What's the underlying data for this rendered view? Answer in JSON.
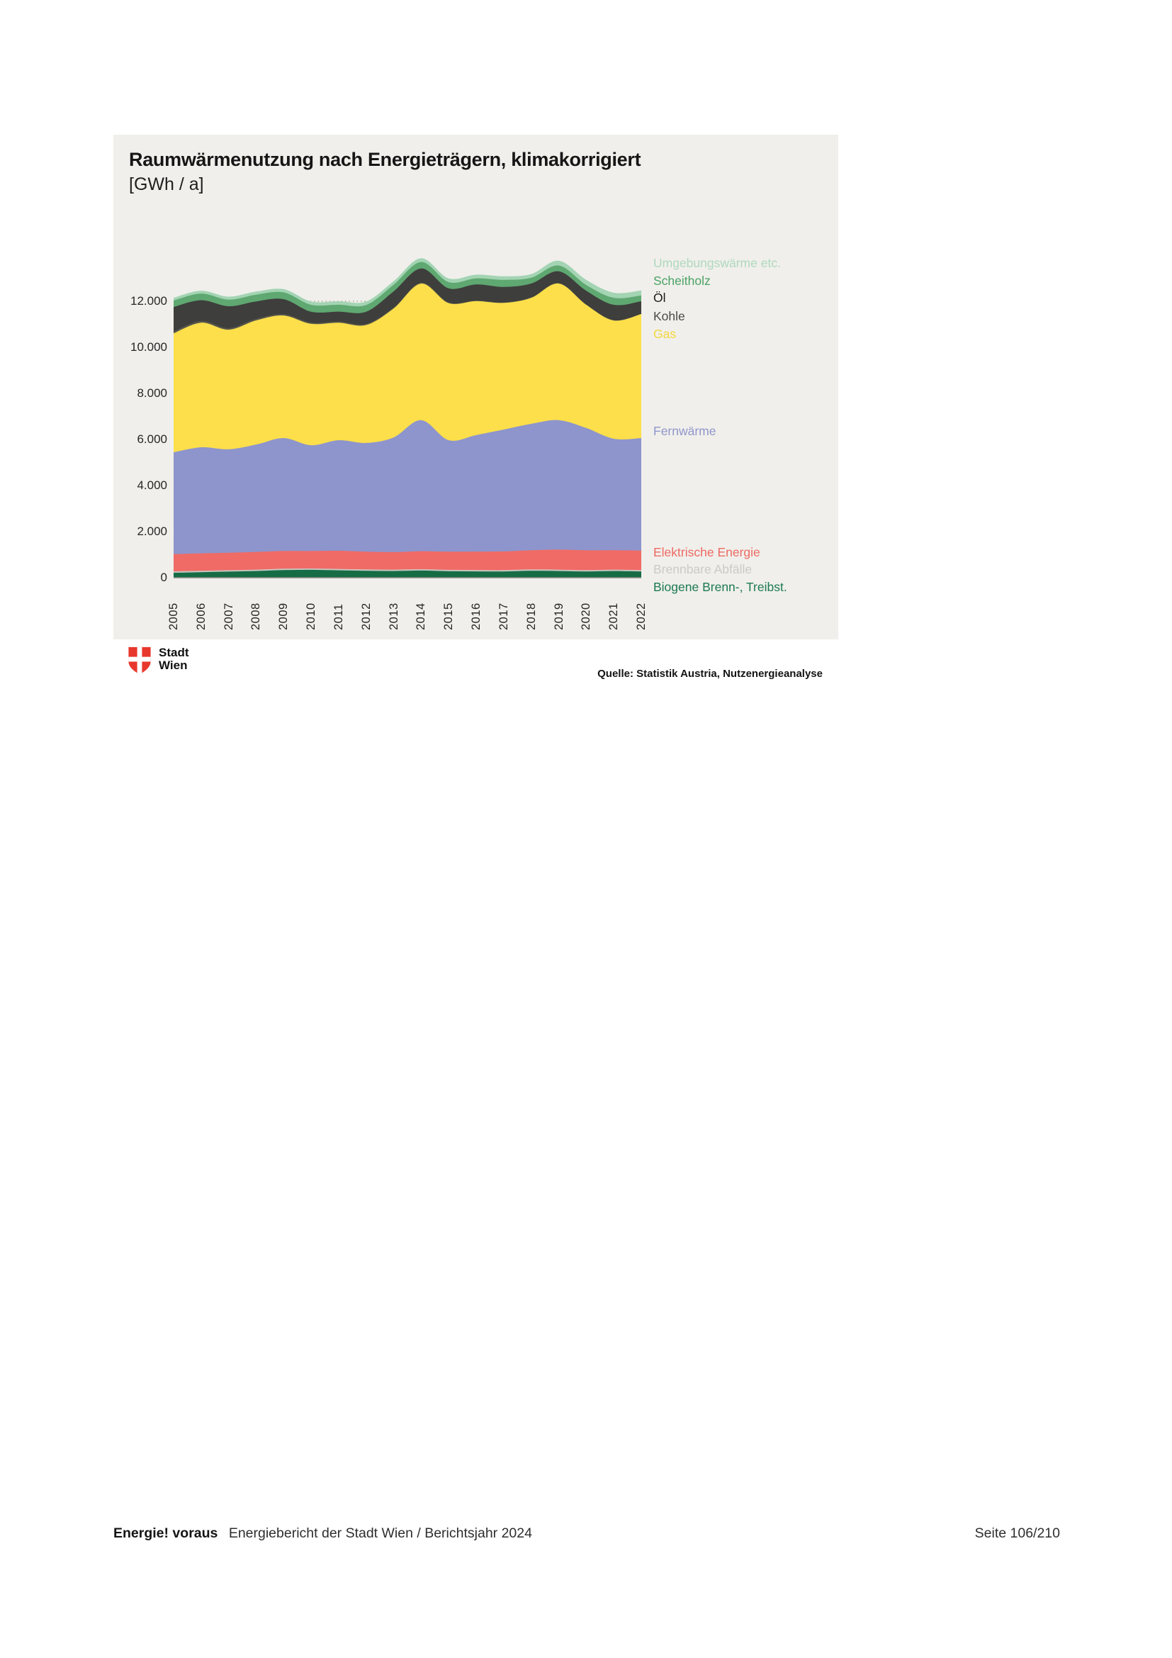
{
  "chart": {
    "title": "Raumwärmenutzung nach Energieträgern, klimakorrigiert",
    "unit": "[GWh / a]"
  },
  "chart_data": {
    "type": "area",
    "stacked": true,
    "title": "Raumwärmenutzung nach Energieträgern, klimakorrigiert",
    "ylabel": "GWh / a",
    "xlabel": "",
    "grid": "dotted horizontal",
    "legend_position": "right",
    "ylim": [
      0,
      14000
    ],
    "categories": [
      2005,
      2006,
      2007,
      2008,
      2009,
      2010,
      2011,
      2012,
      2013,
      2014,
      2015,
      2016,
      2017,
      2018,
      2019,
      2020,
      2021,
      2022
    ],
    "y_ticks": [
      {
        "v": 0,
        "label": "0"
      },
      {
        "v": 2000,
        "label": "2.000"
      },
      {
        "v": 4000,
        "label": "4.000"
      },
      {
        "v": 6000,
        "label": "6.000"
      },
      {
        "v": 8000,
        "label": "8.000"
      },
      {
        "v": 10000,
        "label": "10.000"
      },
      {
        "v": 12000,
        "label": "12.000"
      }
    ],
    "series": [
      {
        "key": "biogene",
        "name": "Biogene Brenn-, Treibst.",
        "color": "#156c45",
        "legend_color": "#1d7a50",
        "values": [
          215,
          240,
          265,
          290,
          330,
          340,
          320,
          300,
          290,
          310,
          280,
          275,
          270,
          300,
          290,
          270,
          290,
          270
        ]
      },
      {
        "key": "abfaelle",
        "name": "Brennbare Abfälle",
        "color": "#c6c6c0",
        "legend_color": "#cbcbc6",
        "values": [
          60,
          60,
          60,
          60,
          60,
          60,
          60,
          60,
          60,
          60,
          60,
          60,
          60,
          60,
          60,
          60,
          60,
          60
        ]
      },
      {
        "key": "elektrische",
        "name": "Elektrische Energie",
        "color": "#f06b66",
        "legend_color": "#ee6a64",
        "values": [
          750,
          760,
          760,
          770,
          770,
          760,
          790,
          770,
          760,
          780,
          790,
          800,
          810,
          830,
          870,
          860,
          840,
          850
        ]
      },
      {
        "key": "fernwaerme",
        "name": "Fernwärme",
        "color": "#8e95cc",
        "legend_color": "#9096cb",
        "values": [
          4420,
          4600,
          4490,
          4660,
          4900,
          4590,
          4800,
          4720,
          4980,
          5690,
          4840,
          5060,
          5290,
          5490,
          5620,
          5310,
          4840,
          4880
        ]
      },
      {
        "key": "gas",
        "name": "Gas",
        "color": "#fcdf4a",
        "legend_color": "#f5d73b",
        "values": [
          5165,
          5410,
          5190,
          5390,
          5320,
          5270,
          5100,
          5120,
          5600,
          5930,
          5950,
          5810,
          5500,
          5470,
          5930,
          5345,
          5135,
          5385
        ]
      },
      {
        "key": "kohle",
        "name": "Kohle",
        "color": "#57574e",
        "legend_color": "#4b4b49",
        "values": [
          80,
          75,
          70,
          65,
          60,
          55,
          50,
          45,
          40,
          35,
          30,
          25,
          25,
          20,
          20,
          15,
          15,
          10
        ]
      },
      {
        "key": "oel",
        "name": "Öl",
        "color": "#3e3e3c",
        "legend_color": "#1a1a1a",
        "values": [
          1060,
          900,
          950,
          760,
          650,
          470,
          430,
          530,
          700,
          620,
          610,
          700,
          665,
          600,
          510,
          595,
          665,
          545
        ]
      },
      {
        "key": "scheitholz",
        "name": "Scheitholz",
        "color": "#5fa871",
        "legend_color": "#4ba265",
        "values": [
          280,
          290,
          285,
          290,
          295,
          300,
          300,
          295,
          290,
          280,
          270,
          265,
          310,
          250,
          250,
          250,
          305,
          250
        ]
      },
      {
        "key": "umgebungswaerme",
        "name": "Umgebungswärme etc.",
        "color": "#a3d4b3",
        "legend_color": "#afd8bd",
        "values": [
          120,
          125,
          130,
          135,
          140,
          145,
          150,
          150,
          155,
          160,
          160,
          160,
          155,
          160,
          210,
          220,
          220,
          220
        ]
      }
    ]
  },
  "logo": {
    "line1": "Stadt",
    "line2": "Wien",
    "shield_color": "#e8372c"
  },
  "source": "Quelle: Statistik Austria, Nutzenergieanalyse",
  "footer": {
    "brand": "Energie! voraus",
    "text": "Energiebericht der Stadt Wien / Berichtsjahr 2024",
    "page": "Seite 106/210"
  }
}
